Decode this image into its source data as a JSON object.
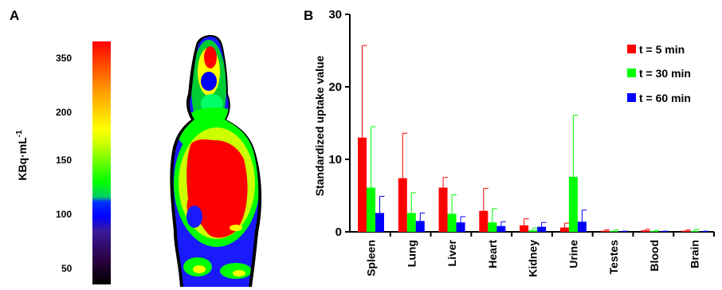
{
  "panel_a": {
    "label": "A",
    "colorbar_title": "KBq·mL",
    "colorbar_title_exponent": "-1",
    "colorbar_ticks": [
      "350",
      "200",
      "150",
      "100",
      "50"
    ]
  },
  "panel_b": {
    "label": "B"
  },
  "colors": {
    "t5": "#ff0000",
    "t30": "#00ff00",
    "t60": "#0000ff"
  },
  "chart_data": {
    "type": "bar",
    "ylabel": "Standardized uptake value",
    "ylim": [
      0,
      30
    ],
    "yticks": [
      0,
      10,
      20,
      30
    ],
    "categories": [
      "Spleen",
      "Lung",
      "Liver",
      "Heart",
      "Kidney",
      "Urine",
      "Testes",
      "Blood",
      "Brain"
    ],
    "series": [
      {
        "name": "t = 5 min",
        "color": "#ff0000",
        "values": [
          13.0,
          7.4,
          6.1,
          2.9,
          0.9,
          0.6,
          0.15,
          0.2,
          0.15
        ],
        "errors": [
          12.7,
          6.2,
          1.4,
          3.1,
          0.9,
          0.6,
          0.15,
          0.15,
          0.1
        ]
      },
      {
        "name": "t = 30 min",
        "color": "#00ff00",
        "values": [
          6.1,
          2.6,
          2.5,
          1.3,
          0.2,
          7.6,
          0.1,
          0.1,
          0.1
        ],
        "errors": [
          8.4,
          2.8,
          2.6,
          1.9,
          0.3,
          8.5,
          0.15,
          0.1,
          0.25
        ]
      },
      {
        "name": "t = 60 min",
        "color": "#0000ff",
        "values": [
          2.6,
          1.5,
          1.3,
          0.8,
          0.7,
          1.4,
          0.05,
          0.05,
          0.05
        ],
        "errors": [
          2.3,
          1.1,
          0.8,
          0.6,
          0.6,
          1.6,
          0.05,
          0.05,
          0.05
        ]
      }
    ],
    "legend_position": "top-right",
    "grid": false
  }
}
